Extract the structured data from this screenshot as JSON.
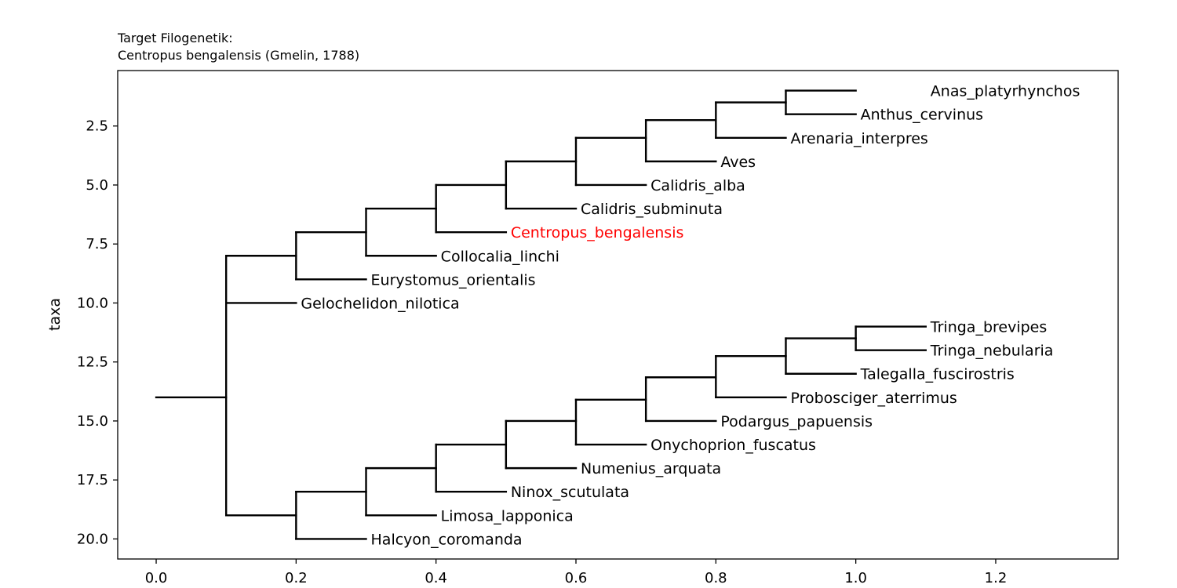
{
  "chart_data": {
    "type": "dendrogram",
    "title_line1": "Target Filogenetik:",
    "title_line2": "Centropus bengalensis (Gmelin, 1788)",
    "xlabel": "",
    "ylabel": "taxa",
    "xlim": [
      -0.055,
      1.375
    ],
    "ylim": [
      20.85,
      0.15
    ],
    "y_inverted": true,
    "grid": false,
    "x_ticks": [
      0.0,
      0.2,
      0.4,
      0.6,
      0.8,
      1.0,
      1.2
    ],
    "x_tick_labels": [
      "0.0",
      "0.2",
      "0.4",
      "0.6",
      "0.8",
      "1.0",
      "1.2"
    ],
    "y_ticks": [
      2.5,
      5.0,
      7.5,
      10.0,
      12.5,
      15.0,
      17.5,
      20.0
    ],
    "y_tick_labels": [
      "2.5",
      "5.0",
      "7.5",
      "10.0",
      "12.5",
      "15.0",
      "17.5",
      "20.0"
    ],
    "line_color": "#000000",
    "highlight_color": "#ff0000",
    "highlight_taxon": "Centropus_bengalensis",
    "root": {
      "x": 0.0,
      "y": 14.0
    },
    "taxa": [
      {
        "name": "Anas_platyrhynchos",
        "x": 1.1,
        "y": 1
      },
      {
        "name": "Anthus_cervinus",
        "x": 1.0,
        "y": 2
      },
      {
        "name": "Arenaria_interpres",
        "x": 0.9,
        "y": 3
      },
      {
        "name": "Aves",
        "x": 0.8,
        "y": 4
      },
      {
        "name": "Calidris_alba",
        "x": 0.7,
        "y": 5
      },
      {
        "name": "Calidris_subminuta",
        "x": 0.6,
        "y": 6
      },
      {
        "name": "Centropus_bengalensis",
        "x": 0.5,
        "y": 7
      },
      {
        "name": "Collocalia_linchi",
        "x": 0.4,
        "y": 8
      },
      {
        "name": "Eurystomus_orientalis",
        "x": 0.3,
        "y": 9
      },
      {
        "name": "Gelochelidon_nilotica",
        "x": 0.2,
        "y": 10
      },
      {
        "name": "Tringa_brevipes",
        "x": 1.1,
        "y": 11
      },
      {
        "name": "Tringa_nebularia",
        "x": 1.1,
        "y": 12
      },
      {
        "name": "Talegalla_fuscirostris",
        "x": 1.0,
        "y": 13
      },
      {
        "name": "Probosciger_aterrimus",
        "x": 0.9,
        "y": 14
      },
      {
        "name": "Podargus_papuensis",
        "x": 0.8,
        "y": 15
      },
      {
        "name": "Onychoprion_fuscatus",
        "x": 0.7,
        "y": 16
      },
      {
        "name": "Numenius_arquata",
        "x": 0.6,
        "y": 17
      },
      {
        "name": "Ninox_scutulata",
        "x": 0.5,
        "y": 18
      },
      {
        "name": "Limosa_lapponica",
        "x": 0.4,
        "y": 19
      },
      {
        "name": "Halcyon_coromanda",
        "x": 0.3,
        "y": 20
      }
    ],
    "nodes": [
      {
        "x": 0.1,
        "y_min": 8.0,
        "y_max": 19.0,
        "children": [
          {
            "y": 8.0,
            "x_end": 0.2
          },
          {
            "y": 10.0,
            "x_end": 0.2
          },
          {
            "y": 19.0,
            "x_end": 0.2
          }
        ]
      },
      {
        "x": 0.2,
        "y_min": 7.0,
        "y_max": 9.0,
        "children": [
          {
            "y": 7.0,
            "x_end": 0.3
          },
          {
            "y": 9.0,
            "x_end": 0.3
          }
        ]
      },
      {
        "x": 0.3,
        "y_min": 6.0,
        "y_max": 8.0,
        "children": [
          {
            "y": 6.0,
            "x_end": 0.4
          },
          {
            "y": 8.0,
            "x_end": 0.4
          }
        ]
      },
      {
        "x": 0.4,
        "y_min": 5.0,
        "y_max": 7.0,
        "children": [
          {
            "y": 5.0,
            "x_end": 0.5
          },
          {
            "y": 7.0,
            "x_end": 0.5
          }
        ]
      },
      {
        "x": 0.5,
        "y_min": 4.0,
        "y_max": 6.0,
        "children": [
          {
            "y": 4.0,
            "x_end": 0.6
          },
          {
            "y": 6.0,
            "x_end": 0.6
          }
        ]
      },
      {
        "x": 0.6,
        "y_min": 3.0,
        "y_max": 5.0,
        "children": [
          {
            "y": 3.0,
            "x_end": 0.7
          },
          {
            "y": 5.0,
            "x_end": 0.7
          }
        ]
      },
      {
        "x": 0.7,
        "y_min": 2.25,
        "y_max": 4.0,
        "children": [
          {
            "y": 2.25,
            "x_end": 0.8
          },
          {
            "y": 4.0,
            "x_end": 0.8
          }
        ]
      },
      {
        "x": 0.8,
        "y_min": 1.5,
        "y_max": 3.0,
        "children": [
          {
            "y": 1.5,
            "x_end": 0.9
          },
          {
            "y": 3.0,
            "x_end": 0.9
          }
        ]
      },
      {
        "x": 0.9,
        "y_min": 1.0,
        "y_max": 2.0,
        "children": [
          {
            "y": 1.0,
            "x_end": 1.0
          },
          {
            "y": 2.0,
            "x_end": 1.0
          }
        ]
      },
      {
        "x": 0.2,
        "y_min": 18.0,
        "y_max": 20.0,
        "children": [
          {
            "y": 18.0,
            "x_end": 0.3
          },
          {
            "y": 20.0,
            "x_end": 0.3
          }
        ]
      },
      {
        "x": 0.3,
        "y_min": 17.0,
        "y_max": 19.0,
        "children": [
          {
            "y": 17.0,
            "x_end": 0.4
          },
          {
            "y": 19.0,
            "x_end": 0.4
          }
        ]
      },
      {
        "x": 0.4,
        "y_min": 16.0,
        "y_max": 18.0,
        "children": [
          {
            "y": 16.0,
            "x_end": 0.5
          },
          {
            "y": 18.0,
            "x_end": 0.5
          }
        ]
      },
      {
        "x": 0.5,
        "y_min": 15.0,
        "y_max": 17.0,
        "children": [
          {
            "y": 15.0,
            "x_end": 0.6
          },
          {
            "y": 17.0,
            "x_end": 0.6
          }
        ]
      },
      {
        "x": 0.6,
        "y_min": 14.1,
        "y_max": 16.0,
        "children": [
          {
            "y": 14.1,
            "x_end": 0.7
          },
          {
            "y": 16.0,
            "x_end": 0.7
          }
        ]
      },
      {
        "x": 0.7,
        "y_min": 13.15,
        "y_max": 15.0,
        "children": [
          {
            "y": 13.15,
            "x_end": 0.8
          },
          {
            "y": 15.0,
            "x_end": 0.8
          }
        ]
      },
      {
        "x": 0.8,
        "y_min": 12.25,
        "y_max": 14.0,
        "children": [
          {
            "y": 12.25,
            "x_end": 0.9
          },
          {
            "y": 14.0,
            "x_end": 0.9
          }
        ]
      },
      {
        "x": 0.9,
        "y_min": 11.5,
        "y_max": 13.0,
        "children": [
          {
            "y": 11.5,
            "x_end": 1.0
          },
          {
            "y": 13.0,
            "x_end": 1.0
          }
        ]
      },
      {
        "x": 1.0,
        "y_min": 11.0,
        "y_max": 12.0,
        "children": [
          {
            "y": 11.0,
            "x_end": 1.1
          },
          {
            "y": 12.0,
            "x_end": 1.1
          }
        ]
      }
    ],
    "root_branch": {
      "y": 14.0,
      "x_start": 0.0,
      "x_end": 0.1
    }
  }
}
